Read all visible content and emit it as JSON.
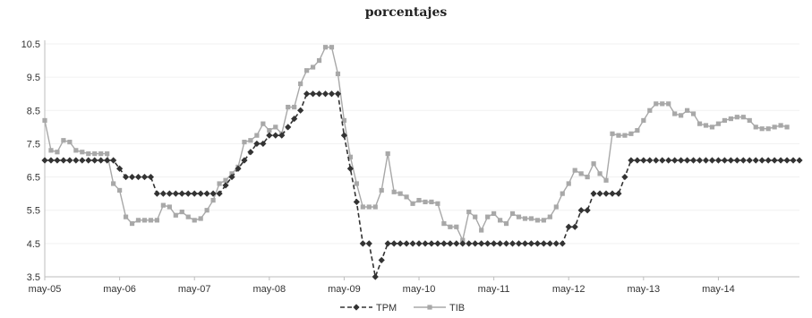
{
  "chart_data": {
    "type": "line",
    "title": "porcentajes",
    "xlabel": "",
    "ylabel": "",
    "ylim": [
      3.5,
      10.5
    ],
    "yticks": [
      "3.5",
      "4.5",
      "5.5",
      "6.5",
      "7.5",
      "8.5",
      "9.5",
      "10.5"
    ],
    "xticks": [
      "may-05",
      "may-06",
      "may-07",
      "may-08",
      "may-09",
      "may-10",
      "may-11",
      "may-12",
      "may-13",
      "may-14"
    ],
    "x_start": "may-05",
    "x_step": "1 month",
    "grid": "faint horizontal",
    "legend": "bottom-center",
    "series": [
      {
        "name": "TPM",
        "color": "#333333",
        "style": "dashed",
        "marker": "diamond",
        "values": [
          7,
          7,
          7,
          7,
          7,
          7,
          7,
          7,
          7,
          7,
          7,
          7,
          6.75,
          6.5,
          6.5,
          6.5,
          6.5,
          6.5,
          6,
          6,
          6,
          6,
          6,
          6,
          6,
          6,
          6,
          6,
          6,
          6.25,
          6.5,
          6.75,
          7,
          7.25,
          7.5,
          7.5,
          7.75,
          7.75,
          7.75,
          8,
          8.25,
          8.5,
          9,
          9,
          9,
          9,
          9,
          9,
          7.75,
          6.75,
          5.75,
          4.5,
          4.5,
          3.5,
          4,
          4.5,
          4.5,
          4.5,
          4.5,
          4.5,
          4.5,
          4.5,
          4.5,
          4.5,
          4.5,
          4.5,
          4.5,
          4.5,
          4.5,
          4.5,
          4.5,
          4.5,
          4.5,
          4.5,
          4.5,
          4.5,
          4.5,
          4.5,
          4.5,
          4.5,
          4.5,
          4.5,
          4.5,
          4.5,
          5,
          5,
          5.5,
          5.5,
          6,
          6,
          6,
          6,
          6,
          6.5,
          7,
          7,
          7,
          7,
          7,
          7,
          7,
          7,
          7,
          7,
          7,
          7,
          7,
          7,
          7,
          7,
          7,
          7,
          7,
          7,
          7,
          7,
          7,
          7,
          7,
          7,
          7,
          7
        ]
      },
      {
        "name": "TIB",
        "color": "#a8a8a8",
        "style": "solid",
        "marker": "square",
        "values": [
          8.2,
          7.3,
          7.25,
          7.6,
          7.55,
          7.3,
          7.25,
          7.2,
          7.2,
          7.2,
          7.2,
          6.3,
          6.1,
          5.3,
          5.1,
          5.2,
          5.2,
          5.2,
          5.2,
          5.65,
          5.6,
          5.35,
          5.45,
          5.3,
          5.2,
          5.25,
          5.5,
          5.8,
          6.3,
          6.4,
          6.6,
          6.8,
          7.55,
          7.6,
          7.75,
          8.1,
          7.9,
          8,
          7.8,
          8.6,
          8.6,
          9.3,
          9.7,
          9.8,
          10,
          10.4,
          10.4,
          9.6,
          8.2,
          7.1,
          6.3,
          5.6,
          5.6,
          5.6,
          6.1,
          7.2,
          6.05,
          6,
          5.9,
          5.7,
          5.8,
          5.75,
          5.75,
          5.7,
          5.1,
          5,
          5,
          4.6,
          5.45,
          5.3,
          4.9,
          5.3,
          5.4,
          5.2,
          5.1,
          5.4,
          5.3,
          5.25,
          5.25,
          5.2,
          5.2,
          5.3,
          5.6,
          6,
          6.3,
          6.7,
          6.6,
          6.5,
          6.9,
          6.6,
          6.4,
          7.8,
          7.75,
          7.75,
          7.8,
          7.9,
          8.2,
          8.5,
          8.7,
          8.7,
          8.7,
          8.4,
          8.35,
          8.5,
          8.4,
          8.1,
          8.05,
          8.0,
          8.1,
          8.2,
          8.25,
          8.3,
          8.3,
          8.2,
          8.0,
          7.95,
          7.95,
          8.0,
          8.05,
          8.0
        ]
      }
    ]
  }
}
